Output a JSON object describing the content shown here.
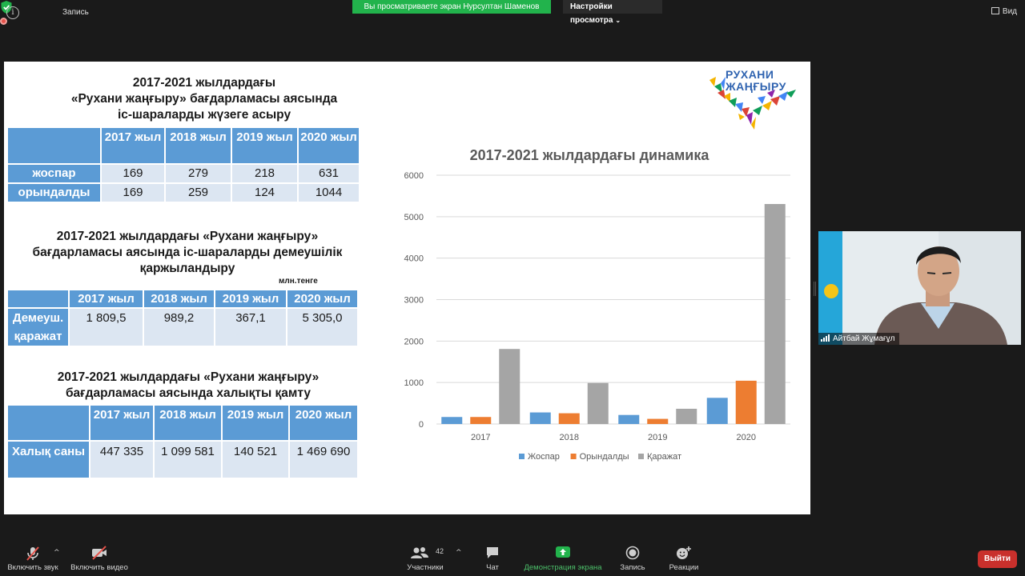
{
  "top_bar": {
    "recording_label": "Запись",
    "share_banner": "Вы просматриваете экран Нурсултан Шаменов",
    "view_settings": "Настройки просмотра",
    "view_label": "Вид",
    "icons": [
      "info-icon",
      "shield-check-icon",
      "record-icon",
      "chevron-down-icon",
      "grid-icon"
    ]
  },
  "slide": {
    "section1_title_lines": [
      "2017-2021 жылдардағы",
      "«Рухани жаңғыру» бағдарламасы аясында",
      "іс-шараларды жүзеге асыру"
    ],
    "table1": {
      "headers": [
        "",
        "2017 жыл",
        "2018 жыл",
        "2019 жыл",
        "2020 жыл"
      ],
      "rows": [
        [
          "жоспар",
          "169",
          "279",
          "218",
          "631"
        ],
        [
          "орындалды",
          "169",
          "259",
          "124",
          "1044"
        ]
      ]
    },
    "section2_title_lines": [
      "2017-2021 жылдардағы «Рухани жаңғыру»",
      "бағдарламасы аясында іс-шараларды демеушілік",
      "қаржыландыру"
    ],
    "unit_label": "млн.тенге",
    "table2": {
      "headers": [
        "",
        "2017 жыл",
        "2018 жыл",
        "2019 жыл",
        "2020 жыл"
      ],
      "rows": [
        [
          "Демеуш. қаражат",
          "1 809,5",
          "989,2",
          "367,1",
          "5 305,0"
        ]
      ]
    },
    "section3_title_lines": [
      "2017-2021 жылдардағы «Рухани жаңғыру»",
      "бағдарламасы аясында халықты қамту"
    ],
    "table3": {
      "headers": [
        "",
        "2017 жыл",
        "2018 жыл",
        "2019 жыл",
        "2020 жыл"
      ],
      "rows": [
        [
          "Халық саны",
          "447 335",
          "1 099 581",
          "140 521",
          "1 469 690"
        ]
      ]
    },
    "logo_text_lines": [
      "РУХАНИ",
      "ЖАҢҒЫРУ"
    ]
  },
  "chart_data": {
    "type": "bar",
    "title": "2017-2021 жылдардағы динамика",
    "categories": [
      "2017",
      "2018",
      "2019",
      "2020"
    ],
    "series": [
      {
        "name": "Жоспар",
        "color": "#5b9bd5",
        "values": [
          169,
          279,
          218,
          631
        ]
      },
      {
        "name": "Орындалды",
        "color": "#ed7d31",
        "values": [
          169,
          259,
          124,
          1044
        ]
      },
      {
        "name": "Қаражат",
        "color": "#a5a5a5",
        "values": [
          1809.5,
          989.2,
          367.1,
          5305.0
        ]
      }
    ],
    "ylim": [
      0,
      6000
    ],
    "yticks": [
      0,
      1000,
      2000,
      3000,
      4000,
      5000,
      6000
    ],
    "grid": true,
    "legend": "bottom"
  },
  "participant": {
    "name": "Айтбай Жұмағұл"
  },
  "toolbar": {
    "mute_label": "Включить звук",
    "video_label": "Включить видео",
    "participants_label": "Участники",
    "participants_count": "42",
    "chat_label": "Чат",
    "share_label": "Демонстрация экрана",
    "record_label": "Запись",
    "reactions_label": "Реакции",
    "exit_label": "Выйти"
  }
}
